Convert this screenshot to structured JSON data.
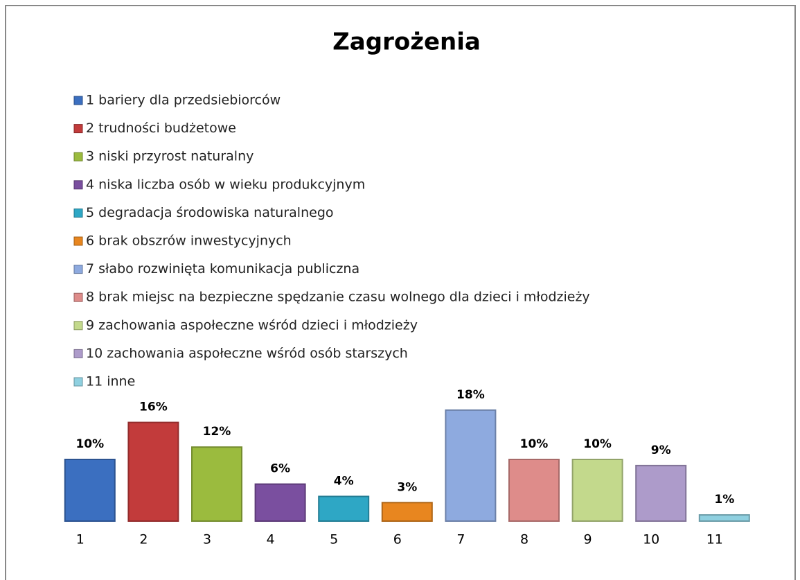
{
  "chart_data": {
    "type": "bar",
    "title": "Zagrożenia",
    "categories": [
      "1",
      "2",
      "3",
      "4",
      "5",
      "6",
      "7",
      "8",
      "9",
      "10",
      "11"
    ],
    "legend": [
      "1 bariery dla przedsiebiorców",
      "2 trudności budżetowe",
      "3 niski przyrost naturalny",
      "4 niska liczba osób w wieku produkcyjnym",
      "5 degradacja środowiska naturalnego",
      "6 brak obszrów inwestycyjnych",
      "7 słabo rozwinięta komunikacja publiczna",
      "8 brak miejsc na bezpieczne spędzanie czasu wolnego dla dzieci i młodzieży",
      "9 zachowania aspołeczne wśród dzieci i młodzieży",
      "10 zachowania aspołeczne wśród osób starszych",
      "11 inne"
    ],
    "values": [
      10,
      16,
      12,
      6,
      4,
      3,
      18,
      10,
      10,
      9,
      1
    ],
    "value_labels": [
      "10%",
      "16%",
      "12%",
      "6%",
      "4%",
      "3%",
      "18%",
      "10%",
      "10%",
      "9%",
      "1%"
    ],
    "colors": [
      "#3b6fc0",
      "#c23b3b",
      "#9bbb3e",
      "#7a4f9f",
      "#2ea7c5",
      "#e8861f",
      "#8eaadf",
      "#de8c8a",
      "#c3d98c",
      "#ad9bca",
      "#8fd0e0"
    ]
  }
}
